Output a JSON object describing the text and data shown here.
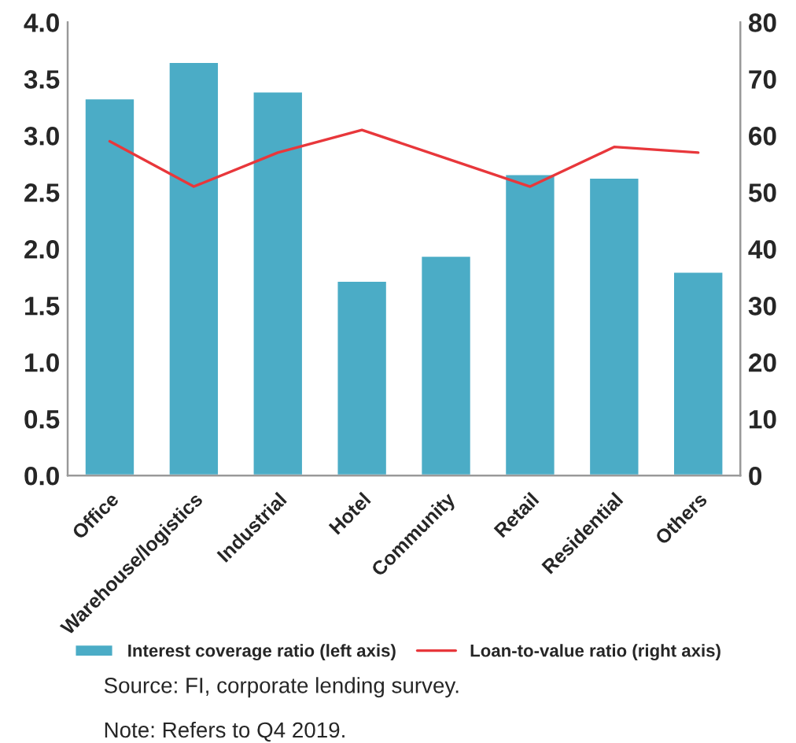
{
  "chart_data": {
    "type": "bar",
    "categories": [
      "Office",
      "Warehouse/logistics",
      "Industrial",
      "Hotel",
      "Community",
      "Retail",
      "Residential",
      "Others"
    ],
    "series": [
      {
        "name": "Interest coverage ratio (left axis)",
        "color": "#4bacc6",
        "values": [
          3.33,
          3.65,
          3.39,
          1.72,
          1.94,
          2.66,
          2.63,
          1.8
        ]
      },
      {
        "name": "Loan-to-value ratio (right axis)",
        "type": "line",
        "axis": "y2",
        "color": "#e8373b",
        "values": [
          59,
          51,
          57,
          61,
          56,
          51,
          58,
          57
        ]
      }
    ],
    "ylim": [
      0,
      4
    ],
    "yticks": [
      {
        "value": 0,
        "label": "0.0"
      },
      {
        "value": 0.5,
        "label": "0.5"
      },
      {
        "value": 1,
        "label": "1.0"
      },
      {
        "value": 1.5,
        "label": "1.5"
      },
      {
        "value": 2,
        "label": "2.0"
      },
      {
        "value": 2.5,
        "label": "2.5"
      },
      {
        "value": 3,
        "label": "3.0"
      },
      {
        "value": 3.5,
        "label": "3.5"
      },
      {
        "value": 4,
        "label": "4.0"
      }
    ],
    "y2lim": [
      0,
      80
    ],
    "y2ticks": [
      0,
      10,
      20,
      30,
      40,
      50,
      60,
      70,
      80
    ],
    "legend": "bottom",
    "grid": false,
    "annotations": [
      "Source: FI, corporate lending survey.",
      "Note: Refers to Q4 2019."
    ]
  }
}
